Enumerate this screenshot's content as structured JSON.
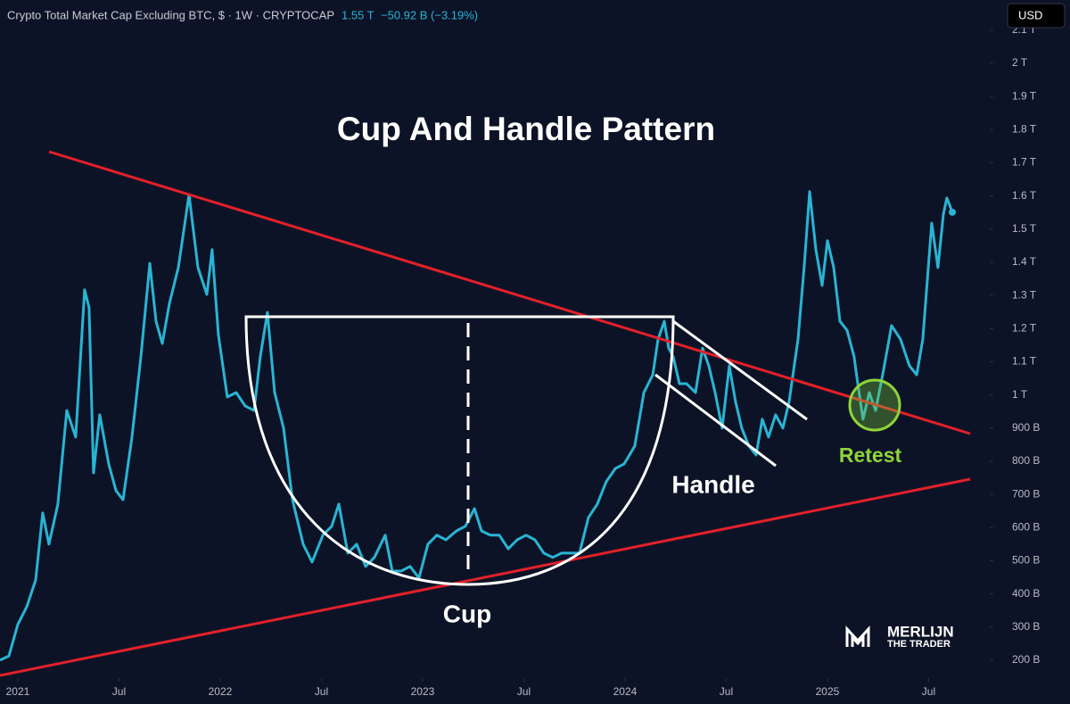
{
  "chart_data": {
    "type": "line",
    "header": {
      "symbol": "Crypto Total Market Cap Excluding BTC, $ · 1W · CRYPTOCAP",
      "price": "1.55 T",
      "change": "−50.92 B (−3.19%)"
    },
    "currency_button": "USD",
    "title": "Cup And Handle Pattern",
    "annotations": {
      "cup": "Cup",
      "handle": "Handle",
      "retest": "Retest"
    },
    "logo": {
      "name": "MERLIJN",
      "tagline": "THE TRADER"
    },
    "color": "#2ab4d4",
    "x": [
      2020.912,
      2020.956,
      2021.0,
      2021.044,
      2021.088,
      2021.123,
      2021.154,
      2021.198,
      2021.242,
      2021.286,
      2021.33,
      2021.352,
      2021.374,
      2021.405,
      2021.449,
      2021.485,
      2021.52,
      2021.564,
      2021.608,
      2021.652,
      2021.683,
      2021.714,
      2021.749,
      2021.793,
      2021.846,
      2021.89,
      2021.934,
      2021.96,
      2021.991,
      2022.035,
      2022.079,
      2022.123,
      2022.167,
      2022.198,
      2022.233,
      2022.269,
      2022.313,
      2022.357,
      2022.41,
      2022.454,
      2022.507,
      2022.551,
      2022.586,
      2022.63,
      2022.674,
      2022.718,
      2022.762,
      2022.815,
      2022.85,
      2022.894,
      2022.938,
      2022.982,
      2023.026,
      2023.07,
      2023.115,
      2023.167,
      2023.211,
      2023.256,
      2023.291,
      2023.335,
      2023.379,
      2023.423,
      2023.467,
      2023.511,
      2023.555,
      2023.599,
      2023.643,
      2023.687,
      2023.731,
      2023.775,
      2023.819,
      2023.863,
      2023.907,
      2023.952,
      2023.996,
      2024.048,
      2024.093,
      2024.137,
      2024.163,
      2024.194,
      2024.216,
      2024.238,
      2024.269,
      2024.304,
      2024.348,
      2024.383,
      2024.414,
      2024.445,
      2024.48,
      2024.515,
      2024.546,
      2024.577,
      2024.612,
      2024.648,
      2024.678,
      2024.709,
      2024.744,
      2024.78,
      2024.811,
      2024.855,
      2024.885,
      2024.912,
      2024.943,
      2024.974,
      2025.0,
      2025.031,
      2025.062,
      2025.097,
      2025.132,
      2025.15,
      2025.176,
      2025.207,
      2025.238,
      2025.273,
      2025.317,
      2025.361,
      2025.405,
      2025.441,
      2025.471,
      2025.515,
      2025.546,
      2025.573,
      2025.59,
      2025.617
    ],
    "values": [
      200,
      213,
      308,
      361,
      442,
      644,
      550,
      671,
      953,
      873,
      1317,
      1263,
      765,
      940,
      792,
      711,
      684,
      873,
      1115,
      1397,
      1222,
      1155,
      1276,
      1384,
      1604,
      1384,
      1303,
      1438,
      1182,
      994,
      1007,
      967,
      953,
      1115,
      1249,
      1007,
      900,
      684,
      550,
      496,
      577,
      604,
      671,
      523,
      550,
      483,
      510,
      577,
      469,
      469,
      483,
      448,
      550,
      577,
      563,
      590,
      604,
      657,
      590,
      577,
      577,
      536,
      563,
      577,
      563,
      523,
      510,
      523,
      523,
      523,
      630,
      671,
      738,
      778,
      792,
      846,
      1007,
      1061,
      1168,
      1222,
      1141,
      1115,
      1034,
      1034,
      1007,
      1141,
      1088,
      1007,
      900,
      1088,
      980,
      900,
      846,
      819,
      927,
      873,
      940,
      900,
      980,
      1168,
      1384,
      1613,
      1438,
      1330,
      1465,
      1384,
      1222,
      1195,
      1115,
      1034,
      927,
      1007,
      953,
      1061,
      1209,
      1168,
      1088,
      1061,
      1168,
      1518,
      1384,
      1545,
      1594,
      1551
    ],
    "xlim": [
      2020.912,
      2025.802
    ],
    "xticks": [
      {
        "value": 2021,
        "label": "2021"
      },
      {
        "value": 2021.5,
        "label": "Jul"
      },
      {
        "value": 2022,
        "label": "2022"
      },
      {
        "value": 2022.5,
        "label": "Jul"
      },
      {
        "value": 2023,
        "label": "2023"
      },
      {
        "value": 2023.5,
        "label": "Jul"
      },
      {
        "value": 2024,
        "label": "2024"
      },
      {
        "value": 2024.5,
        "label": "Jul"
      },
      {
        "value": 2025,
        "label": "2025"
      },
      {
        "value": 2025.5,
        "label": "Jul"
      }
    ],
    "ylim": [
      146,
      2191
    ],
    "yticks": [
      {
        "value": 200,
        "label": "200 B"
      },
      {
        "value": 300,
        "label": "300 B"
      },
      {
        "value": 400,
        "label": "400 B"
      },
      {
        "value": 500,
        "label": "500 B"
      },
      {
        "value": 600,
        "label": "600 B"
      },
      {
        "value": 700,
        "label": "700 B"
      },
      {
        "value": 800,
        "label": "800 B"
      },
      {
        "value": 900,
        "label": "900 B"
      },
      {
        "value": 1000,
        "label": "1 T"
      },
      {
        "value": 1100,
        "label": "1.1 T"
      },
      {
        "value": 1200,
        "label": "1.2 T"
      },
      {
        "value": 1300,
        "label": "1.3 T"
      },
      {
        "value": 1400,
        "label": "1.4 T"
      },
      {
        "value": 1500,
        "label": "1.5 T"
      },
      {
        "value": 1600,
        "label": "1.6 T"
      },
      {
        "value": 1700,
        "label": "1.7 T"
      },
      {
        "value": 1800,
        "label": "1.8 T"
      },
      {
        "value": 1900,
        "label": "1.9 T"
      },
      {
        "value": 2000,
        "label": "2 T"
      },
      {
        "value": 2100,
        "label": "2.1 T"
      }
    ]
  }
}
